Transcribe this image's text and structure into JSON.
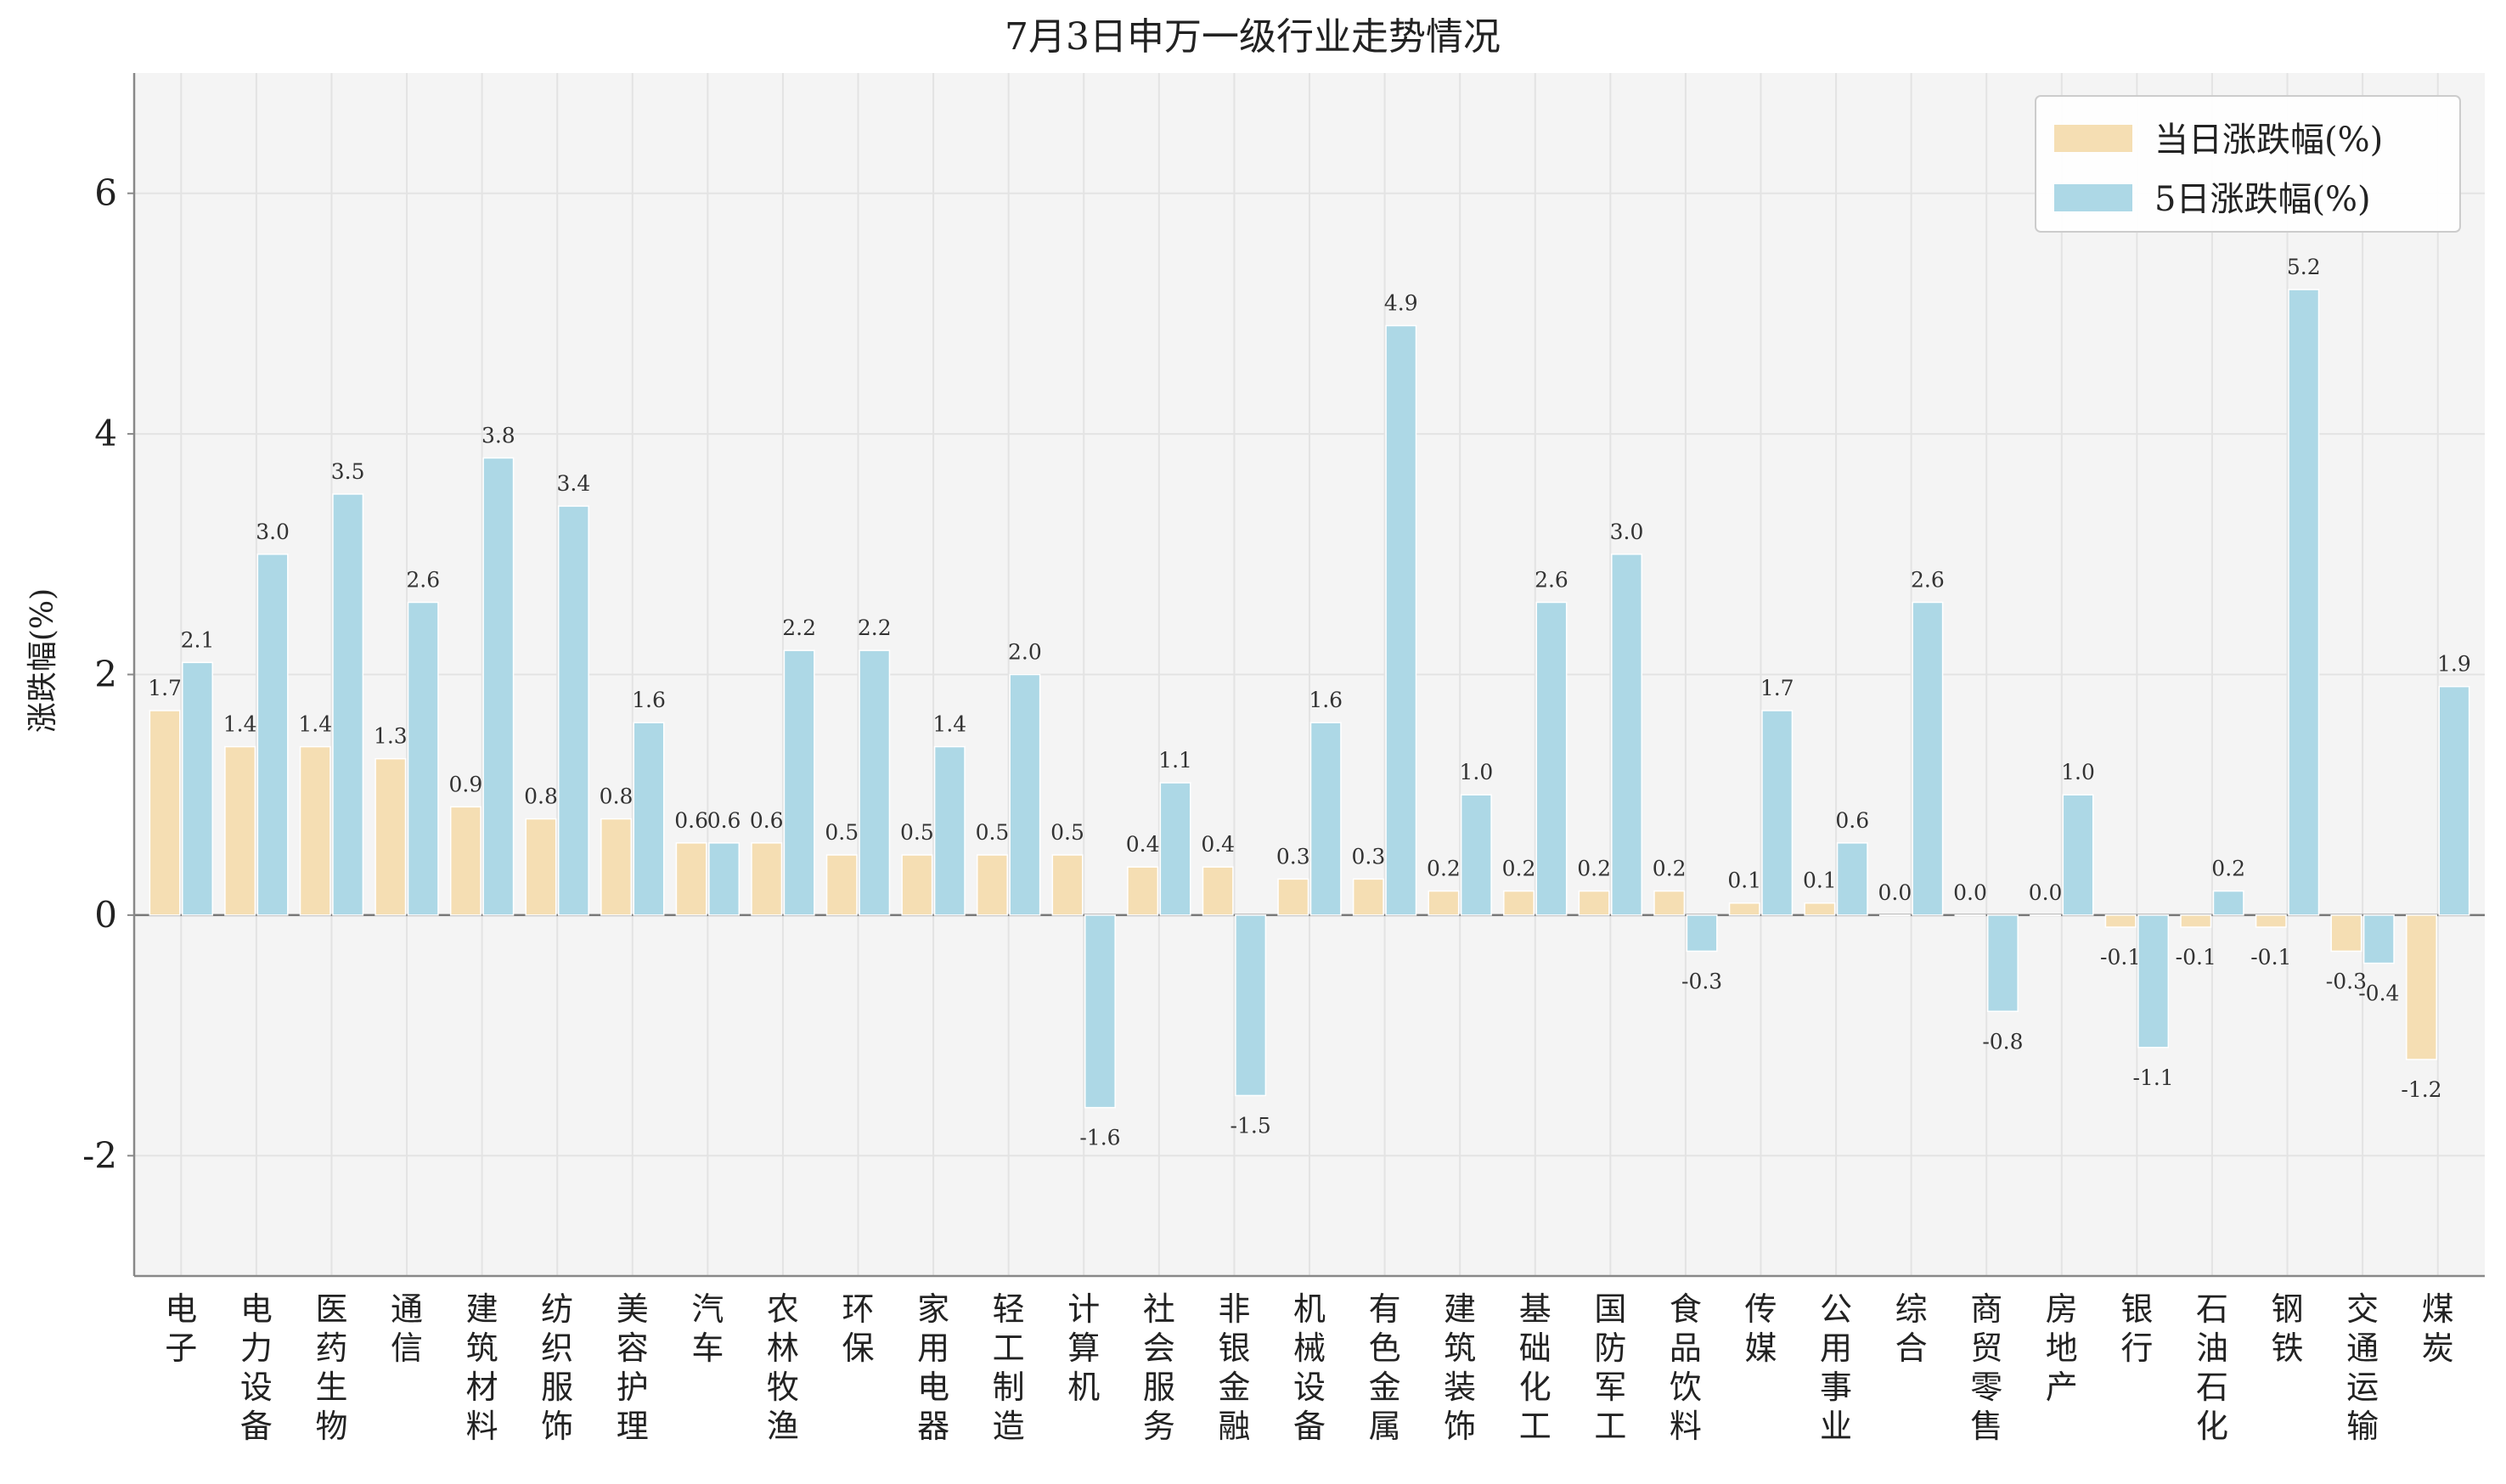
{
  "chart_data": {
    "type": "bar",
    "title": "7月3日申万一级行业走势情况",
    "xlabel": "",
    "ylabel": "涨跌幅(%)",
    "ylim": [
      -3,
      7
    ],
    "yticks": [
      -2,
      0,
      2,
      4,
      6
    ],
    "grid": true,
    "legend_position": "top-right",
    "categories": [
      "电子",
      "电力设备",
      "医药生物",
      "通信",
      "建筑材料",
      "纺织服饰",
      "美容护理",
      "汽车",
      "农林牧渔",
      "环保",
      "家用电器",
      "轻工制造",
      "计算机",
      "社会服务",
      "非银金融",
      "机械设备",
      "有色金属",
      "建筑装饰",
      "基础化工",
      "国防军工",
      "食品饮料",
      "传媒",
      "公用事业",
      "综合",
      "商贸零售",
      "房地产",
      "银行",
      "石油石化",
      "钢铁",
      "交通运输",
      "煤炭"
    ],
    "series": [
      {
        "name": "当日涨跌幅(%)",
        "color": "#f5deb3",
        "values": [
          1.7,
          1.4,
          1.4,
          1.3,
          0.9,
          0.8,
          0.8,
          0.6,
          0.6,
          0.5,
          0.5,
          0.5,
          0.5,
          0.4,
          0.4,
          0.3,
          0.3,
          0.2,
          0.2,
          0.2,
          0.2,
          0.1,
          0.1,
          0.0,
          0.0,
          0.0,
          -0.1,
          -0.1,
          -0.1,
          -0.3,
          -1.2
        ]
      },
      {
        "name": "5日涨跌幅(%)",
        "color": "#add8e6",
        "values": [
          2.1,
          3.0,
          3.5,
          2.6,
          3.8,
          3.4,
          1.6,
          0.6,
          2.2,
          2.2,
          1.4,
          2.0,
          -1.6,
          1.1,
          -1.5,
          1.6,
          4.9,
          1.0,
          2.6,
          3.0,
          -0.3,
          1.7,
          0.6,
          2.6,
          -0.8,
          1.0,
          -1.1,
          0.2,
          5.2,
          -0.4,
          1.9
        ]
      }
    ]
  }
}
